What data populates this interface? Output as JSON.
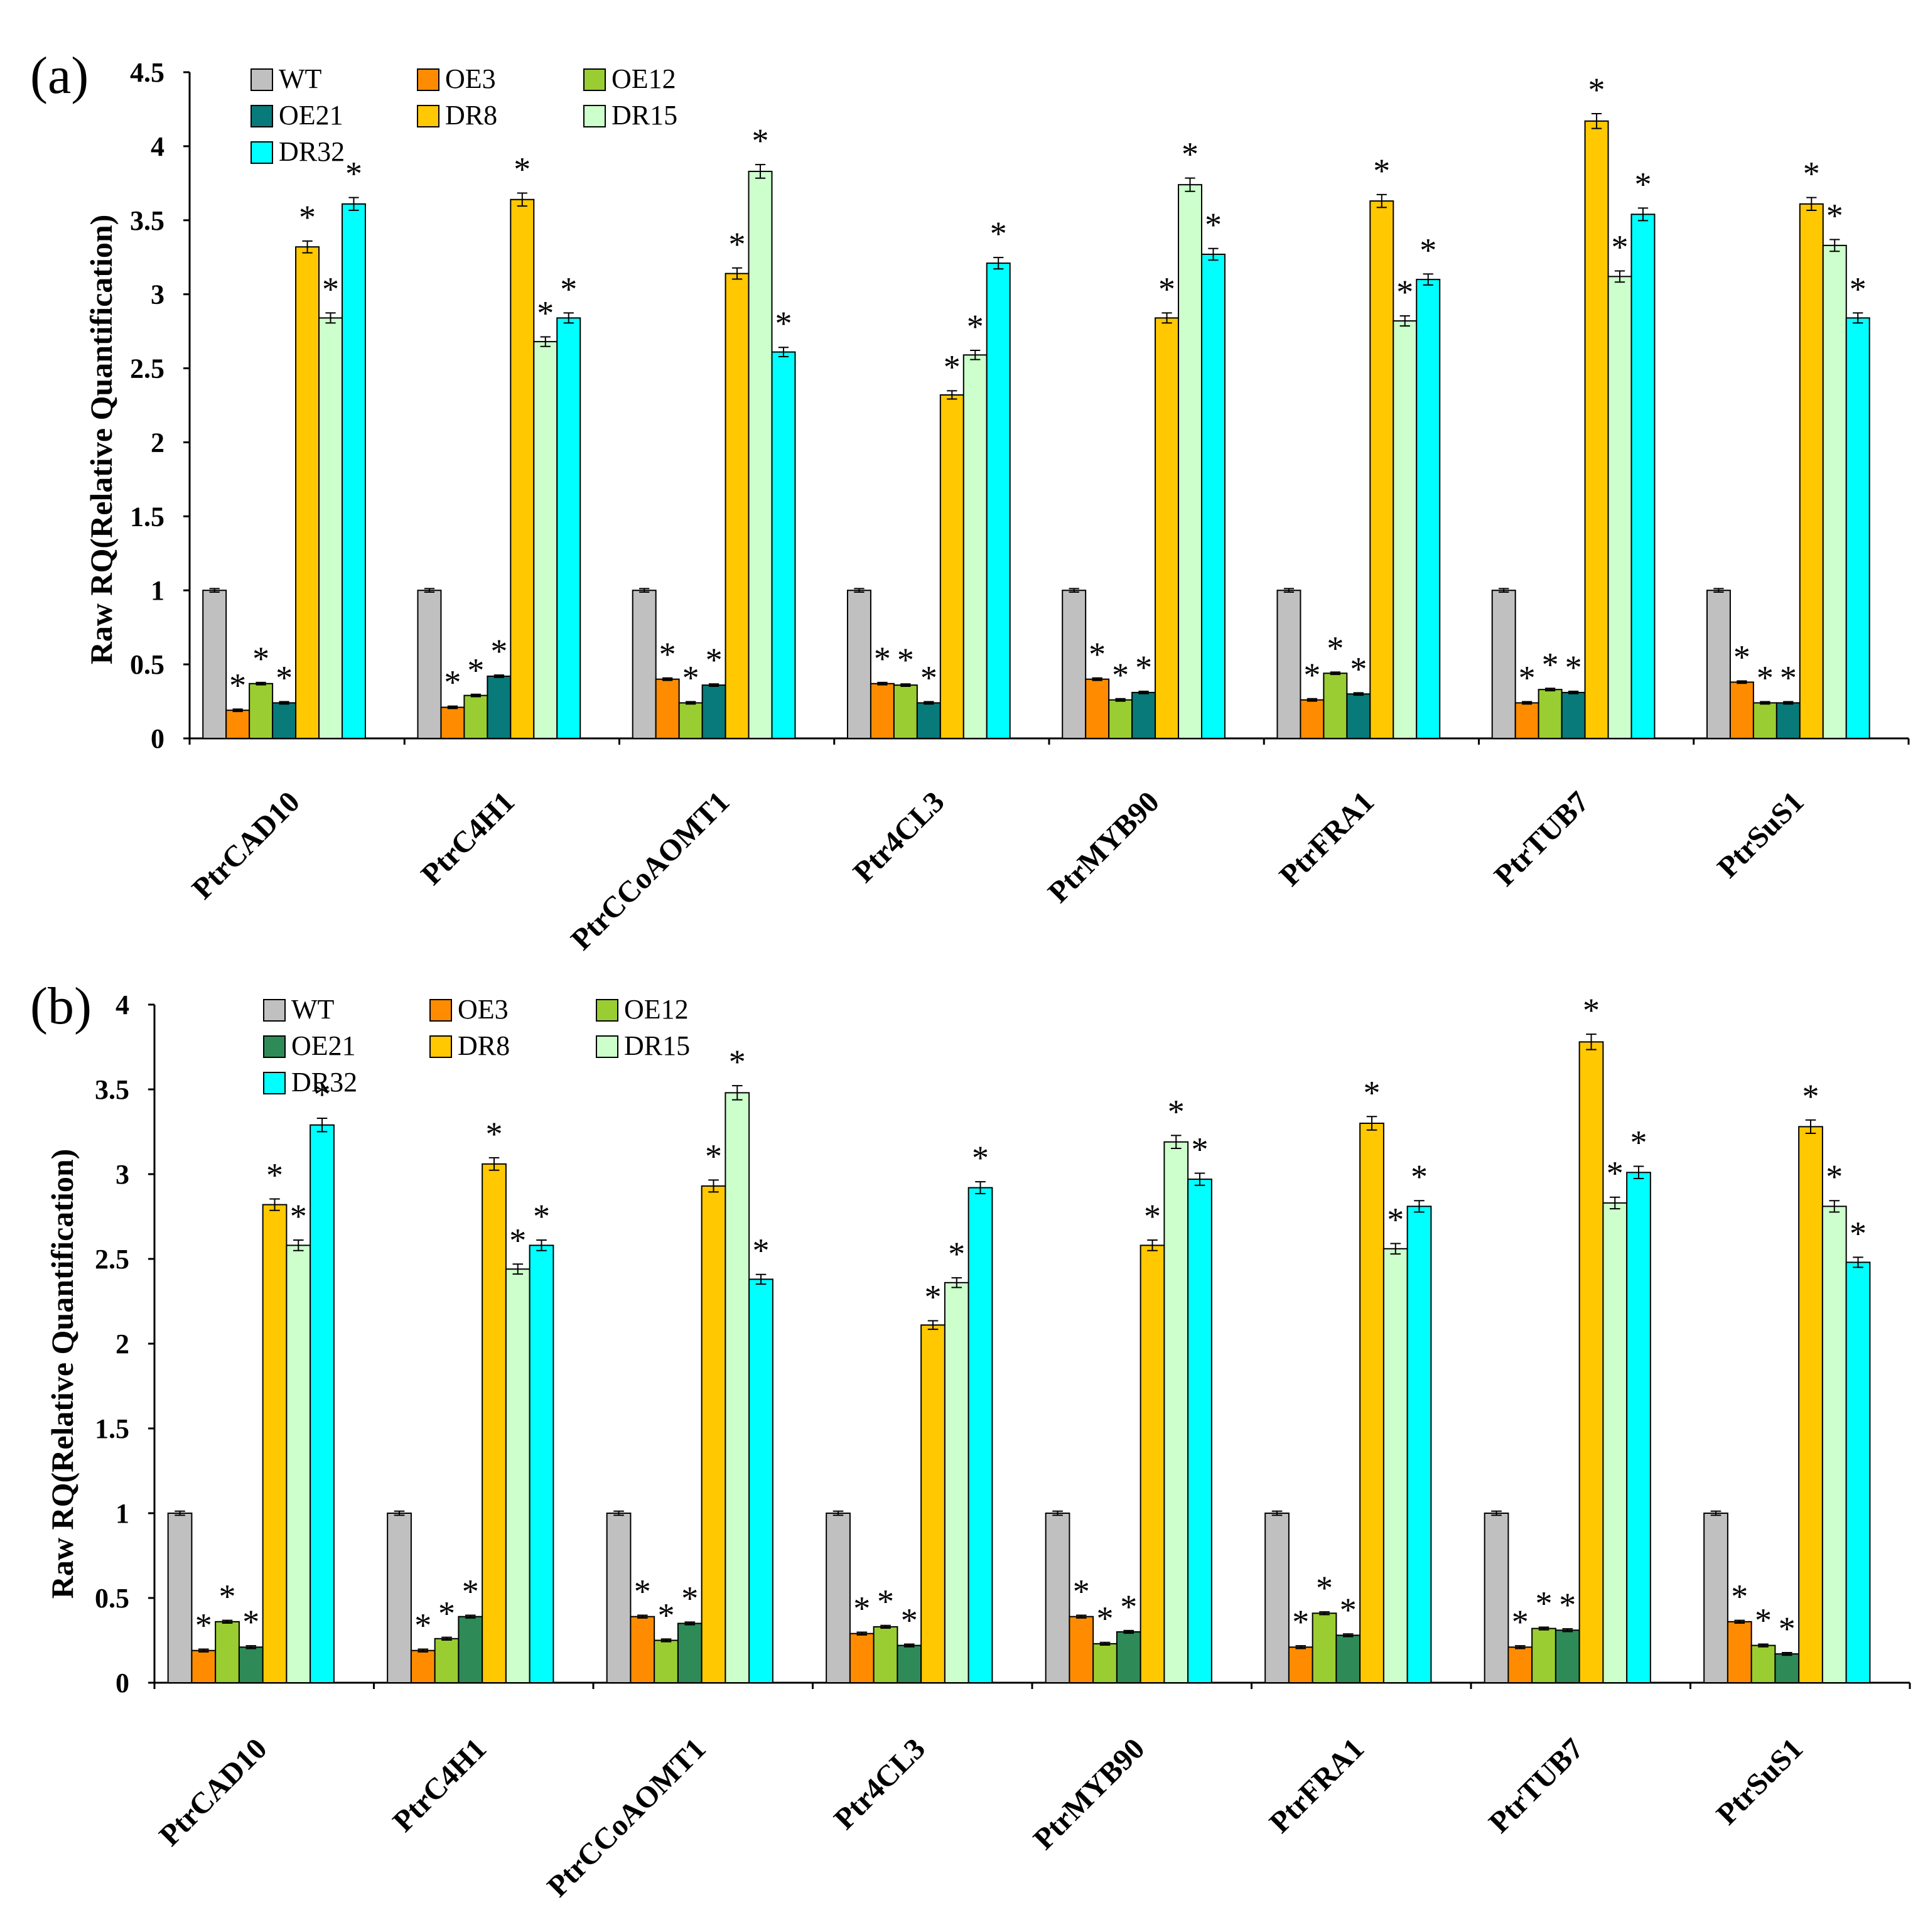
{
  "chart_data": [
    {
      "panel_label": "(a)",
      "type": "bar",
      "ylabel": "Raw RQ(Relative Quantification)",
      "ylim": [
        0,
        4.5
      ],
      "yticks": [
        "0",
        "0.5",
        "1",
        "1.5",
        "2",
        "2.5",
        "3",
        "3.5",
        "4",
        "4.5"
      ],
      "categories": [
        "PtrCAD10",
        "PtrC4H1",
        "PtrCCoAOMT1",
        "Ptr4CL3",
        "PtrMYB90",
        "PtrFRA1",
        "PtrTUB7",
        "PtrSuS1"
      ],
      "series": [
        {
          "name": "WT",
          "color": "#c0c0c0",
          "values": [
            1.0,
            1.0,
            1.0,
            1.0,
            1.0,
            1.0,
            1.0,
            1.0
          ],
          "significant": [
            false,
            false,
            false,
            false,
            false,
            false,
            false,
            false
          ]
        },
        {
          "name": "OE3",
          "color": "#ff8c00",
          "values": [
            0.19,
            0.21,
            0.4,
            0.37,
            0.4,
            0.26,
            0.24,
            0.38
          ],
          "significant": [
            true,
            true,
            true,
            true,
            true,
            true,
            true,
            true
          ]
        },
        {
          "name": "OE12",
          "color": "#9acd32",
          "values": [
            0.37,
            0.29,
            0.24,
            0.36,
            0.26,
            0.44,
            0.33,
            0.24
          ],
          "significant": [
            true,
            true,
            true,
            true,
            true,
            true,
            true,
            true
          ]
        },
        {
          "name": "OE21",
          "color": "#087a7a",
          "values": [
            0.24,
            0.42,
            0.36,
            0.24,
            0.31,
            0.3,
            0.31,
            0.24
          ],
          "significant": [
            true,
            true,
            true,
            true,
            true,
            true,
            true,
            true
          ]
        },
        {
          "name": "DR8",
          "color": "#ffc800",
          "values": [
            3.32,
            3.64,
            3.14,
            2.32,
            2.84,
            3.63,
            4.17,
            3.61
          ],
          "significant": [
            true,
            true,
            true,
            true,
            true,
            true,
            true,
            true
          ]
        },
        {
          "name": "DR15",
          "color": "#ccffcc",
          "values": [
            2.84,
            2.68,
            3.83,
            2.59,
            3.74,
            2.82,
            3.12,
            3.33
          ],
          "significant": [
            true,
            true,
            true,
            true,
            true,
            true,
            true,
            true
          ]
        },
        {
          "name": "DR32",
          "color": "#00ffff",
          "values": [
            3.61,
            2.84,
            2.61,
            3.21,
            3.27,
            3.1,
            3.54,
            2.84
          ],
          "significant": [
            true,
            true,
            true,
            true,
            true,
            true,
            true,
            true
          ]
        }
      ],
      "significance_marker": "*",
      "legend_position": "top-left",
      "grid": false
    },
    {
      "panel_label": "(b)",
      "type": "bar",
      "ylabel": "Raw RQ(Relative Quantification)",
      "ylim": [
        0,
        4
      ],
      "yticks": [
        "0",
        "0.5",
        "1",
        "1.5",
        "2",
        "2.5",
        "3",
        "3.5",
        "4"
      ],
      "categories": [
        "PtrCAD10",
        "PtrC4H1",
        "PtrCCoAOMT1",
        "Ptr4CL3",
        "PtrMYB90",
        "PtrFRA1",
        "PtrTUB7",
        "PtrSuS1"
      ],
      "series": [
        {
          "name": "WT",
          "color": "#c0c0c0",
          "values": [
            1.0,
            1.0,
            1.0,
            1.0,
            1.0,
            1.0,
            1.0,
            1.0
          ],
          "significant": [
            false,
            false,
            false,
            false,
            false,
            false,
            false,
            false
          ]
        },
        {
          "name": "OE3",
          "color": "#ff8c00",
          "values": [
            0.19,
            0.19,
            0.39,
            0.29,
            0.39,
            0.21,
            0.21,
            0.36
          ],
          "significant": [
            true,
            true,
            true,
            true,
            true,
            true,
            true,
            true
          ]
        },
        {
          "name": "OE12",
          "color": "#9acd32",
          "values": [
            0.36,
            0.26,
            0.25,
            0.33,
            0.23,
            0.41,
            0.32,
            0.22
          ],
          "significant": [
            true,
            true,
            true,
            true,
            true,
            true,
            true,
            true
          ]
        },
        {
          "name": "OE21",
          "color": "#2e8b57",
          "values": [
            0.21,
            0.39,
            0.35,
            0.22,
            0.3,
            0.28,
            0.31,
            0.17
          ],
          "significant": [
            true,
            true,
            true,
            true,
            true,
            true,
            true,
            true
          ]
        },
        {
          "name": "DR8",
          "color": "#ffc800",
          "values": [
            2.82,
            3.06,
            2.93,
            2.11,
            2.58,
            3.3,
            3.78,
            3.28
          ],
          "significant": [
            true,
            true,
            true,
            true,
            true,
            true,
            true,
            true
          ]
        },
        {
          "name": "DR15",
          "color": "#ccffcc",
          "values": [
            2.58,
            2.44,
            3.48,
            2.36,
            3.19,
            2.56,
            2.83,
            2.81
          ],
          "significant": [
            true,
            true,
            true,
            true,
            true,
            true,
            true,
            true
          ]
        },
        {
          "name": "DR32",
          "color": "#00ffff",
          "values": [
            3.29,
            2.58,
            2.38,
            2.92,
            2.97,
            2.81,
            3.01,
            2.48
          ],
          "significant": [
            true,
            true,
            true,
            true,
            true,
            true,
            true,
            true
          ]
        }
      ],
      "significance_marker": "*",
      "legend_position": "top-left",
      "grid": false
    }
  ]
}
